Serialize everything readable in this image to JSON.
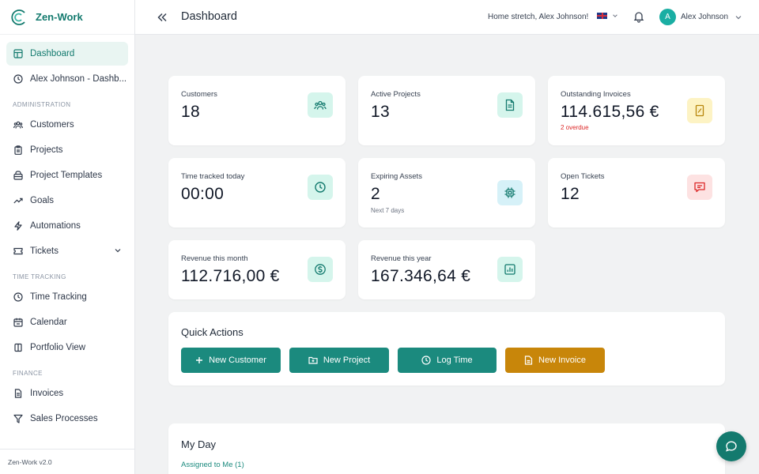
{
  "brand": {
    "name": "Zen-Work",
    "version": "Zen-Work v2.0",
    "color": "#137a6e"
  },
  "sidebar": {
    "items": [
      {
        "label": "Dashboard",
        "icon": "dashboard-icon",
        "active": true
      },
      {
        "label": "Alex Johnson - Dashb...",
        "icon": "clock-icon"
      }
    ],
    "sections": [
      {
        "title": "ADMINISTRATION",
        "items": [
          {
            "label": "Customers",
            "icon": "users-icon"
          },
          {
            "label": "Projects",
            "icon": "clipboard-icon"
          },
          {
            "label": "Project Templates",
            "icon": "template-icon"
          },
          {
            "label": "Goals",
            "icon": "trending-up-icon"
          },
          {
            "label": "Automations",
            "icon": "bolt-icon"
          },
          {
            "label": "Tickets",
            "icon": "ticket-icon",
            "expandable": true
          }
        ]
      },
      {
        "title": "TIME TRACKING",
        "items": [
          {
            "label": "Time Tracking",
            "icon": "clock-icon"
          },
          {
            "label": "Calendar",
            "icon": "calendar-icon"
          },
          {
            "label": "Portfolio View",
            "icon": "columns-icon"
          }
        ]
      },
      {
        "title": "FINANCE",
        "items": [
          {
            "label": "Invoices",
            "icon": "document-icon"
          },
          {
            "label": "Sales Processes",
            "icon": "funnel-icon"
          }
        ]
      }
    ]
  },
  "header": {
    "title": "Dashboard",
    "greeting": "Home stretch, Alex Johnson!",
    "language_icon": "uk-flag-icon",
    "user": {
      "initial": "A",
      "name": "Alex Johnson"
    }
  },
  "stats": [
    {
      "label": "Customers",
      "value": "18",
      "icon": "users-icon",
      "icon_bg": "#d5f5ec",
      "icon_color": "#137a6e"
    },
    {
      "label": "Active Projects",
      "value": "13",
      "icon": "document-icon",
      "icon_bg": "#d5f5ec",
      "icon_color": "#137a6e"
    },
    {
      "label": "Outstanding Invoices",
      "value": "114.615,56 €",
      "sub": "2 overdue",
      "sub_color": "#dc2626",
      "icon": "receipt-icon",
      "icon_bg": "#fdf3c4",
      "icon_color": "#b8860b"
    },
    {
      "label": "Time tracked today",
      "value": "00:00",
      "icon": "clock-icon",
      "icon_bg": "#d5f5ec",
      "icon_color": "#137a6e"
    },
    {
      "label": "Expiring Assets",
      "value": "2",
      "sub": "Next 7 days",
      "icon": "chip-icon",
      "icon_bg": "#d6f1f8",
      "icon_color": "#137a6e"
    },
    {
      "label": "Open Tickets",
      "value": "12",
      "icon": "message-icon",
      "icon_bg": "#fde2e2",
      "icon_color": "#dc2626"
    },
    {
      "label": "Revenue this month",
      "value": "112.716,00 €",
      "icon": "dollar-icon",
      "icon_bg": "#d5f5ec",
      "icon_color": "#137a6e"
    },
    {
      "label": "Revenue this year",
      "value": "167.346,64 €",
      "icon": "bar-chart-icon",
      "icon_bg": "#d5f5ec",
      "icon_color": "#137a6e"
    }
  ],
  "quick_actions": {
    "title": "Quick Actions",
    "buttons": [
      {
        "label": "New Customer",
        "icon": "plus-icon",
        "color": "#1b8a7e"
      },
      {
        "label": "New Project",
        "icon": "folder-plus-icon",
        "color": "#1b8a7e"
      },
      {
        "label": "Log Time",
        "icon": "clock-icon",
        "color": "#1b8a7e"
      },
      {
        "label": "New Invoice",
        "icon": "document-icon",
        "color": "#c8860a"
      }
    ]
  },
  "my_day": {
    "title": "My Day",
    "link": "Assigned to Me (1)"
  },
  "chat": {
    "icon": "chat-icon"
  }
}
